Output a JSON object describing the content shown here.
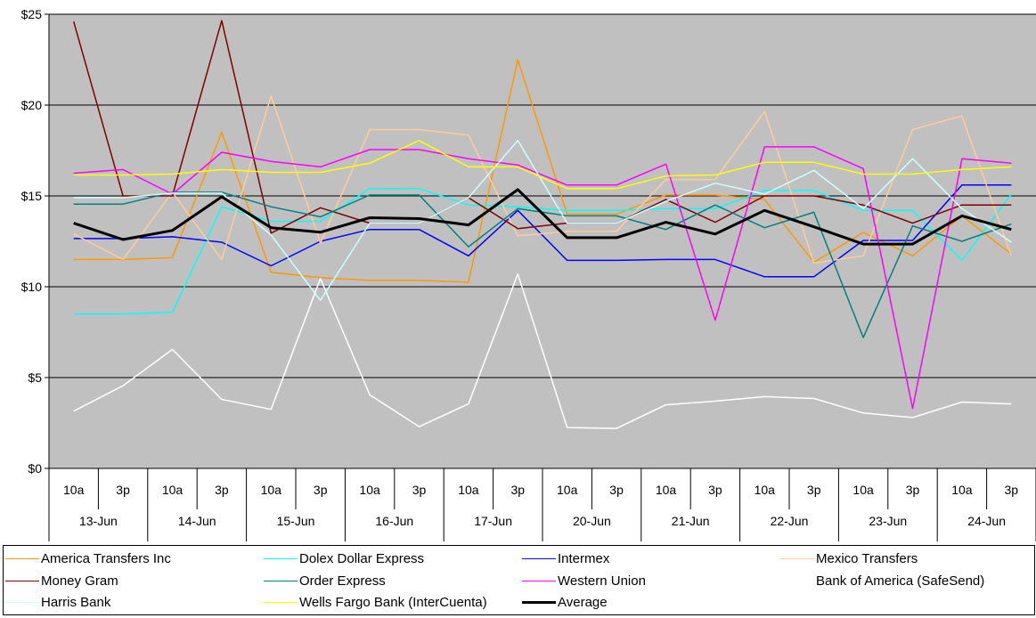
{
  "chart_data": {
    "type": "line",
    "title": "",
    "xlabel": "",
    "ylabel": "",
    "ylim": [
      0,
      25
    ],
    "yticks": [
      0,
      5,
      10,
      15,
      20,
      25
    ],
    "ytick_labels": [
      "$0",
      "$5",
      "$10",
      "$15",
      "$20",
      "$25"
    ],
    "plot_background": "#c0c0c0",
    "grid": "horizontal",
    "legend_position": "bottom",
    "categories": [
      "10a",
      "3p",
      "10a",
      "3p",
      "10a",
      "3p",
      "10a",
      "3p",
      "10a",
      "3p",
      "10a",
      "3p",
      "10a",
      "3p",
      "10a",
      "3p",
      "10a",
      "3p",
      "10a",
      "3p"
    ],
    "category_groups": [
      "13-Jun",
      "14-Jun",
      "15-Jun",
      "16-Jun",
      "17-Jun",
      "20-Jun",
      "21-Jun",
      "22-Jun",
      "23-Jun",
      "24-Jun"
    ],
    "series": [
      {
        "name": "America Transfers Inc",
        "color": "#ff9900",
        "width": 1.5,
        "values": [
          11.5,
          11.5,
          11.6,
          18.5,
          10.8,
          10.5,
          10.35,
          10.35,
          10.25,
          22.5,
          14.0,
          14.0,
          15.05,
          15.05,
          14.8,
          11.35,
          13.0,
          11.7,
          13.9,
          11.8
        ]
      },
      {
        "name": "Dolex Dollar Express",
        "color": "#00ffff",
        "width": 1.5,
        "values": [
          8.5,
          8.5,
          8.6,
          14.4,
          13.6,
          13.6,
          15.4,
          15.4,
          14.5,
          14.4,
          14.2,
          14.2,
          14.3,
          14.3,
          15.3,
          15.3,
          14.2,
          14.2,
          11.45,
          15.1
        ]
      },
      {
        "name": "Intermex",
        "color": "#0000ff",
        "width": 1.5,
        "values": [
          12.65,
          12.65,
          12.75,
          12.45,
          11.15,
          12.5,
          13.15,
          13.15,
          11.7,
          14.2,
          11.45,
          11.45,
          11.5,
          11.5,
          10.55,
          10.55,
          12.55,
          12.55,
          15.6,
          15.6
        ]
      },
      {
        "name": "Mexico Transfers",
        "color": "#ffcc99",
        "width": 1.5,
        "values": [
          12.9,
          11.5,
          15.2,
          11.5,
          20.5,
          12.4,
          18.65,
          18.65,
          18.35,
          12.8,
          13.05,
          13.05,
          15.9,
          15.9,
          19.65,
          11.3,
          11.7,
          18.65,
          19.4,
          11.7
        ]
      },
      {
        "name": "Money Gram",
        "color": "#800000",
        "width": 1.5,
        "values": [
          24.6,
          15.0,
          15.0,
          24.65,
          12.95,
          14.35,
          13.5,
          13.5,
          14.9,
          13.2,
          13.5,
          13.5,
          14.8,
          13.55,
          15.0,
          15.0,
          14.5,
          13.5,
          14.5,
          14.5
        ]
      },
      {
        "name": "Order Express",
        "color": "#008080",
        "width": 1.5,
        "values": [
          14.55,
          14.55,
          15.2,
          15.2,
          14.4,
          13.85,
          15.05,
          15.05,
          12.2,
          14.3,
          13.9,
          13.9,
          13.15,
          14.5,
          13.25,
          14.1,
          7.2,
          13.35,
          12.5,
          13.45
        ]
      },
      {
        "name": "Western Union",
        "color": "#ff00ff",
        "width": 1.5,
        "values": [
          16.25,
          16.45,
          15.1,
          17.4,
          16.9,
          16.6,
          17.55,
          17.55,
          17.05,
          16.7,
          15.6,
          15.6,
          16.75,
          8.15,
          17.7,
          17.7,
          16.5,
          3.3,
          17.05,
          16.8
        ]
      },
      {
        "name": "Bank of America (SafeSend)",
        "color": "#ffffff",
        "width": 1.5,
        "values": [
          3.15,
          4.55,
          6.55,
          3.8,
          3.25,
          10.45,
          4.05,
          2.3,
          3.55,
          10.7,
          2.25,
          2.2,
          3.5,
          3.7,
          3.95,
          3.85,
          3.05,
          2.8,
          3.65,
          3.55
        ]
      },
      {
        "name": "Harris Bank",
        "color": "#ccffff",
        "width": 1.5,
        "values": [
          14.9,
          14.9,
          15.15,
          15.15,
          12.85,
          9.25,
          13.5,
          13.5,
          14.9,
          18.05,
          13.5,
          13.5,
          14.7,
          15.7,
          15.1,
          16.4,
          14.3,
          17.05,
          14.3,
          12.45
        ]
      },
      {
        "name": "Wells Fargo Bank (InterCuenta)",
        "color": "#ffff00",
        "width": 1.5,
        "values": [
          16.15,
          16.15,
          16.2,
          16.45,
          16.3,
          16.3,
          16.8,
          18.05,
          16.6,
          16.6,
          15.4,
          15.4,
          16.1,
          16.15,
          16.85,
          16.85,
          16.2,
          16.2,
          16.45,
          16.6
        ]
      },
      {
        "name": "Average",
        "color": "#000000",
        "width": 3,
        "values": [
          13.5,
          12.6,
          13.1,
          14.95,
          13.25,
          13.0,
          13.8,
          13.75,
          13.4,
          15.35,
          12.7,
          12.7,
          13.55,
          12.9,
          14.2,
          13.3,
          12.35,
          12.35,
          13.9,
          13.15
        ]
      }
    ]
  },
  "legend": {
    "items": [
      {
        "label": "America Transfers Inc",
        "color": "#ff9900",
        "width": 1.5
      },
      {
        "label": "Dolex Dollar Express",
        "color": "#00ffff",
        "width": 1.5
      },
      {
        "label": "Intermex",
        "color": "#0000ff",
        "width": 1.5
      },
      {
        "label": "Mexico Transfers",
        "color": "#ffcc99",
        "width": 1.5
      },
      {
        "label": "Money Gram",
        "color": "#800000",
        "width": 1.5
      },
      {
        "label": "Order Express",
        "color": "#008080",
        "width": 1.5
      },
      {
        "label": "Western Union",
        "color": "#ff00ff",
        "width": 1.5
      },
      {
        "label": "Bank of America (SafeSend)",
        "color": "#ffffff",
        "width": 1.5
      },
      {
        "label": "Harris Bank",
        "color": "#ccffff",
        "width": 1.5
      },
      {
        "label": "Wells Fargo Bank (InterCuenta)",
        "color": "#ffff00",
        "width": 1.5
      },
      {
        "label": "Average",
        "color": "#000000",
        "width": 3
      }
    ]
  }
}
